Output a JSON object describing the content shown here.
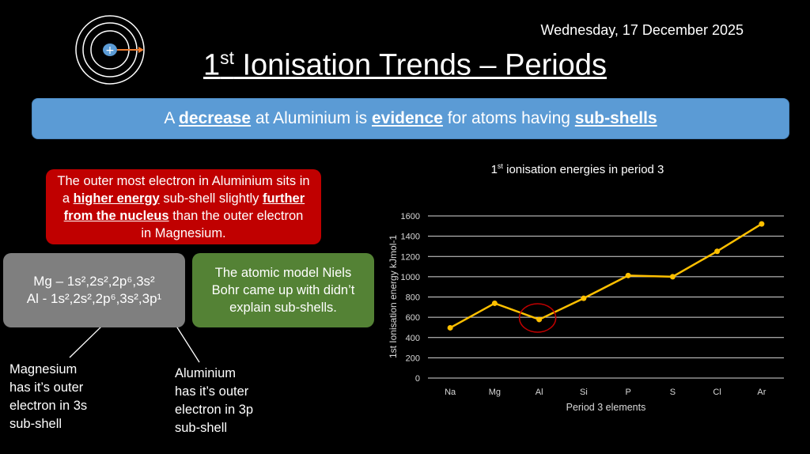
{
  "header": {
    "date": "Wednesday, 17 December 2025",
    "title_sup": "st",
    "title_number": "1",
    "title_rest": " Ionisation Trends – Periods",
    "atom_icon": "atom-electron-icon"
  },
  "banner": {
    "t1": "A ",
    "b1": "decrease",
    "t2": " at Aluminium is ",
    "b2": "evidence",
    "t3": " for atoms having ",
    "b3": "sub-shells"
  },
  "red_box": {
    "t1": "The outer most electron in Aluminium sits in a ",
    "b1": "higher energy",
    "t2": " sub-shell slightly ",
    "b2": "further from the nucleus",
    "t3": " than the outer electron in Magnesium."
  },
  "gray_box": {
    "mg_config": "Mg – 1s²,2s²,2p⁶,3s²",
    "al_config": "Al - 1s²,2s²,2p⁶,3s²,3p¹"
  },
  "green_box": {
    "text": "The atomic model Niels Bohr came up with didn’t explain sub-shells."
  },
  "notes": {
    "mg": [
      "Magnesium",
      "has it’s outer",
      "electron in 3s",
      "sub-shell"
    ],
    "al": [
      "Aluminium",
      "has it’s outer",
      "electron in 3p",
      "sub-shell"
    ]
  },
  "colors": {
    "line": "#ffc000",
    "highlight_circle": "#c00000",
    "banner": "#5b9bd5",
    "red_box": "#c00000",
    "gray_box": "#7f7f7f",
    "green_box": "#548235"
  },
  "chart_data": {
    "type": "line",
    "title_num": "1",
    "title_sup": "st",
    "title_rest": " ionisation energies in period 3",
    "categories": [
      "Na",
      "Mg",
      "Al",
      "Si",
      "P",
      "S",
      "Cl",
      "Ar"
    ],
    "values": [
      496,
      738,
      578,
      787,
      1012,
      1000,
      1251,
      1521
    ],
    "xlabel": "Period 3 elements",
    "ylabel": "1st Ionisation energy kJmol-1",
    "ylim": [
      0,
      1600
    ],
    "yticks": [
      0,
      200,
      400,
      600,
      800,
      1000,
      1200,
      1400,
      1600
    ],
    "grid": true,
    "highlight": "Al"
  }
}
